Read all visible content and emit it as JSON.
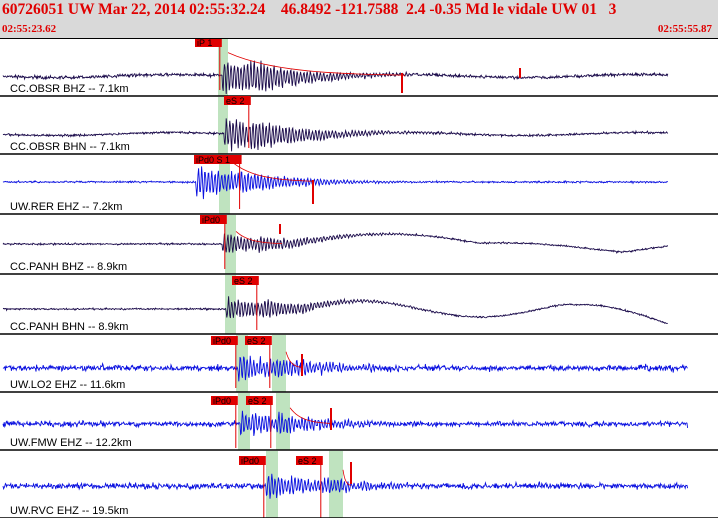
{
  "header": {
    "title": "60726051 UW Mar 22, 2014 02:55:32.24    46.8492 -121.7588  2.4 -0.35 Md le vidale UW 01   3",
    "start_time": "02:55:23.62",
    "end_time": "02:55:55.87"
  },
  "colors": {
    "header_bg": "#d9d9d9",
    "header_text": "#e00000",
    "trace_dark": "#1a0a4a",
    "trace_blue": "#0a10e0",
    "pick_red": "#e00000",
    "window_green": "#bfe3bf"
  },
  "traces": [
    {
      "label": "CC.OBSR BHZ -- 7.1km",
      "picks": [
        {
          "label": "iP 1"
        }
      ],
      "color": "dark"
    },
    {
      "label": "CC.OBSR BHN -- 7.1km",
      "picks": [
        {
          "label": "eS 2"
        }
      ],
      "color": "dark"
    },
    {
      "label": "UW.RER EHZ -- 7.2km",
      "picks": [
        {
          "label": "iPd0 S 1"
        }
      ],
      "color": "blue"
    },
    {
      "label": "CC.PANH BHZ -- 8.9km",
      "picks": [
        {
          "label": "iPd0"
        }
      ],
      "color": "dark"
    },
    {
      "label": "CC.PANH BHN -- 8.9km",
      "picks": [
        {
          "label": "eS 2"
        }
      ],
      "color": "dark"
    },
    {
      "label": "UW.LO2 EHZ -- 11.6km",
      "picks": [
        {
          "label": "iPd0"
        },
        {
          "label": "eS 2"
        }
      ],
      "color": "blue"
    },
    {
      "label": "UW.FMW EHZ -- 12.2km",
      "picks": [
        {
          "label": "iPd0"
        },
        {
          "label": "eS 2"
        }
      ],
      "color": "blue"
    },
    {
      "label": "UW.RVC EHZ -- 19.5km",
      "picks": [
        {
          "label": "iPd0"
        },
        {
          "label": "eS 2"
        }
      ],
      "color": "blue"
    }
  ]
}
